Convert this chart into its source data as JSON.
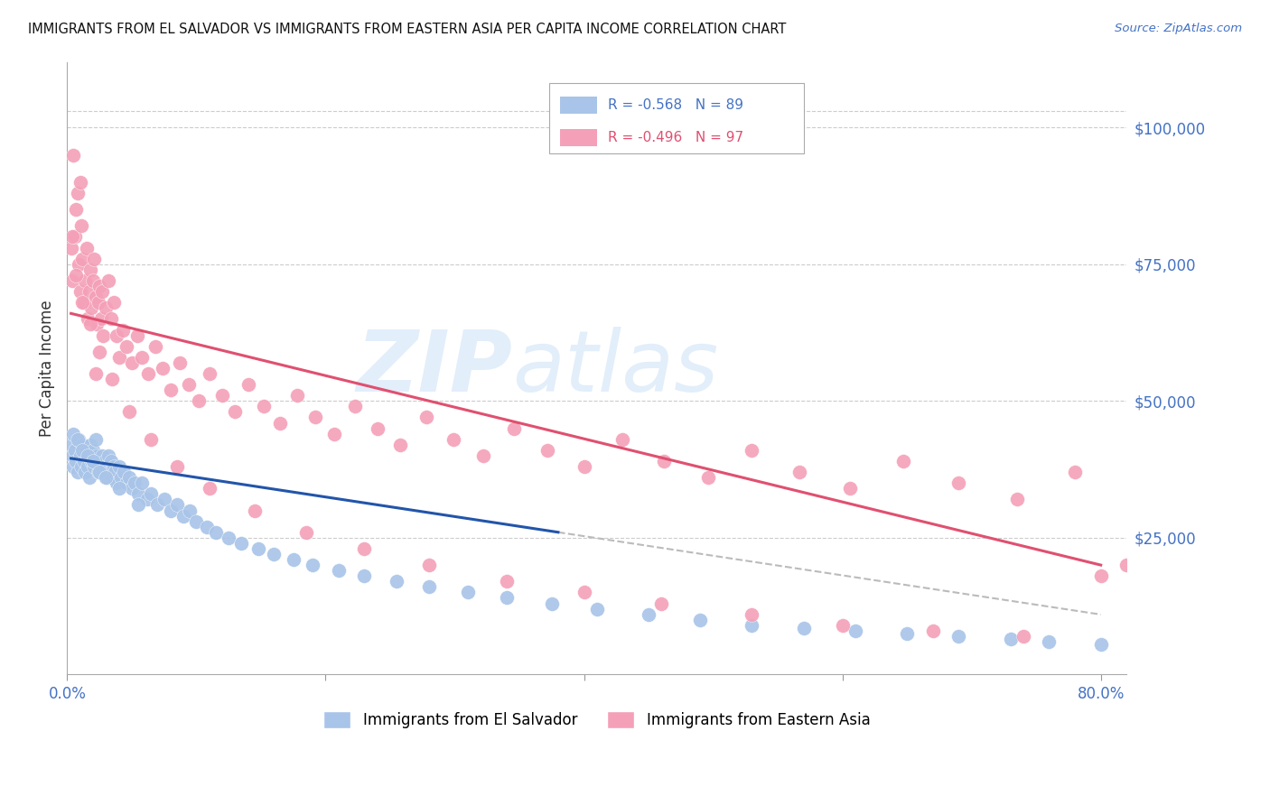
{
  "title": "IMMIGRANTS FROM EL SALVADOR VS IMMIGRANTS FROM EASTERN ASIA PER CAPITA INCOME CORRELATION CHART",
  "source": "Source: ZipAtlas.com",
  "ylabel": "Per Capita Income",
  "yticks": [
    0,
    25000,
    50000,
    75000,
    100000
  ],
  "ytick_labels": [
    "",
    "$25,000",
    "$50,000",
    "$75,000",
    "$100,000"
  ],
  "xmin": 0.0,
  "xmax": 0.82,
  "ymin": 0,
  "ymax": 112000,
  "blue_color": "#a8c4e8",
  "pink_color": "#f4a0b8",
  "blue_line_color": "#2255aa",
  "pink_line_color": "#e05070",
  "dashed_color": "#bbbbbb",
  "legend_R_blue": "-0.568",
  "legend_N_blue": "89",
  "legend_R_pink": "-0.496",
  "legend_N_pink": "97",
  "watermark_zip": "ZIP",
  "watermark_atlas": "atlas",
  "blue_trend_x0": 0.003,
  "blue_trend_x1": 0.38,
  "blue_trend_y0": 39500,
  "blue_trend_y1": 26000,
  "pink_trend_x0": 0.003,
  "pink_trend_x1": 0.8,
  "pink_trend_y0": 66000,
  "pink_trend_y1": 20000,
  "blue_x": [
    0.003,
    0.004,
    0.005,
    0.006,
    0.007,
    0.008,
    0.009,
    0.01,
    0.011,
    0.012,
    0.013,
    0.014,
    0.015,
    0.016,
    0.017,
    0.018,
    0.019,
    0.02,
    0.021,
    0.022,
    0.023,
    0.024,
    0.025,
    0.026,
    0.027,
    0.028,
    0.029,
    0.03,
    0.031,
    0.032,
    0.033,
    0.034,
    0.035,
    0.036,
    0.037,
    0.038,
    0.04,
    0.042,
    0.044,
    0.046,
    0.048,
    0.05,
    0.052,
    0.055,
    0.058,
    0.062,
    0.065,
    0.07,
    0.075,
    0.08,
    0.085,
    0.09,
    0.095,
    0.1,
    0.108,
    0.115,
    0.125,
    0.135,
    0.148,
    0.16,
    0.175,
    0.19,
    0.21,
    0.23,
    0.255,
    0.28,
    0.31,
    0.34,
    0.375,
    0.41,
    0.45,
    0.49,
    0.53,
    0.57,
    0.61,
    0.65,
    0.69,
    0.73,
    0.76,
    0.8,
    0.005,
    0.008,
    0.012,
    0.016,
    0.02,
    0.025,
    0.03,
    0.04,
    0.055
  ],
  "blue_y": [
    42000,
    40000,
    38000,
    41000,
    39000,
    37000,
    43000,
    40000,
    38000,
    42000,
    39000,
    37000,
    41000,
    38000,
    36000,
    42000,
    39000,
    41000,
    38000,
    43000,
    40000,
    37000,
    39000,
    38000,
    40000,
    37000,
    39000,
    38000,
    36000,
    40000,
    37000,
    39000,
    36000,
    38000,
    37000,
    35000,
    38000,
    36000,
    37000,
    35000,
    36000,
    34000,
    35000,
    33000,
    35000,
    32000,
    33000,
    31000,
    32000,
    30000,
    31000,
    29000,
    30000,
    28000,
    27000,
    26000,
    25000,
    24000,
    23000,
    22000,
    21000,
    20000,
    19000,
    18000,
    17000,
    16000,
    15000,
    14000,
    13000,
    12000,
    11000,
    10000,
    9000,
    8500,
    8000,
    7500,
    7000,
    6500,
    6000,
    5500,
    44000,
    43000,
    41000,
    40000,
    39000,
    37000,
    36000,
    34000,
    31000
  ],
  "pink_x": [
    0.003,
    0.004,
    0.005,
    0.006,
    0.007,
    0.008,
    0.009,
    0.01,
    0.011,
    0.012,
    0.013,
    0.014,
    0.015,
    0.016,
    0.017,
    0.018,
    0.019,
    0.02,
    0.021,
    0.022,
    0.023,
    0.024,
    0.025,
    0.026,
    0.027,
    0.028,
    0.03,
    0.032,
    0.034,
    0.036,
    0.038,
    0.04,
    0.043,
    0.046,
    0.05,
    0.054,
    0.058,
    0.063,
    0.068,
    0.074,
    0.08,
    0.087,
    0.094,
    0.102,
    0.11,
    0.12,
    0.13,
    0.14,
    0.152,
    0.165,
    0.178,
    0.192,
    0.207,
    0.223,
    0.24,
    0.258,
    0.278,
    0.299,
    0.322,
    0.346,
    0.372,
    0.4,
    0.43,
    0.462,
    0.496,
    0.53,
    0.567,
    0.606,
    0.647,
    0.69,
    0.735,
    0.78,
    0.82,
    0.004,
    0.007,
    0.012,
    0.018,
    0.025,
    0.035,
    0.048,
    0.065,
    0.085,
    0.11,
    0.145,
    0.185,
    0.23,
    0.28,
    0.34,
    0.4,
    0.46,
    0.53,
    0.6,
    0.67,
    0.74,
    0.8,
    0.01,
    0.022
  ],
  "pink_y": [
    78000,
    72000,
    95000,
    80000,
    85000,
    88000,
    75000,
    70000,
    82000,
    76000,
    68000,
    72000,
    78000,
    65000,
    70000,
    74000,
    67000,
    72000,
    76000,
    69000,
    64000,
    68000,
    71000,
    65000,
    70000,
    62000,
    67000,
    72000,
    65000,
    68000,
    62000,
    58000,
    63000,
    60000,
    57000,
    62000,
    58000,
    55000,
    60000,
    56000,
    52000,
    57000,
    53000,
    50000,
    55000,
    51000,
    48000,
    53000,
    49000,
    46000,
    51000,
    47000,
    44000,
    49000,
    45000,
    42000,
    47000,
    43000,
    40000,
    45000,
    41000,
    38000,
    43000,
    39000,
    36000,
    41000,
    37000,
    34000,
    39000,
    35000,
    32000,
    37000,
    20000,
    80000,
    73000,
    68000,
    64000,
    59000,
    54000,
    48000,
    43000,
    38000,
    34000,
    30000,
    26000,
    23000,
    20000,
    17000,
    15000,
    13000,
    11000,
    9000,
    8000,
    7000,
    18000,
    90000,
    55000
  ]
}
